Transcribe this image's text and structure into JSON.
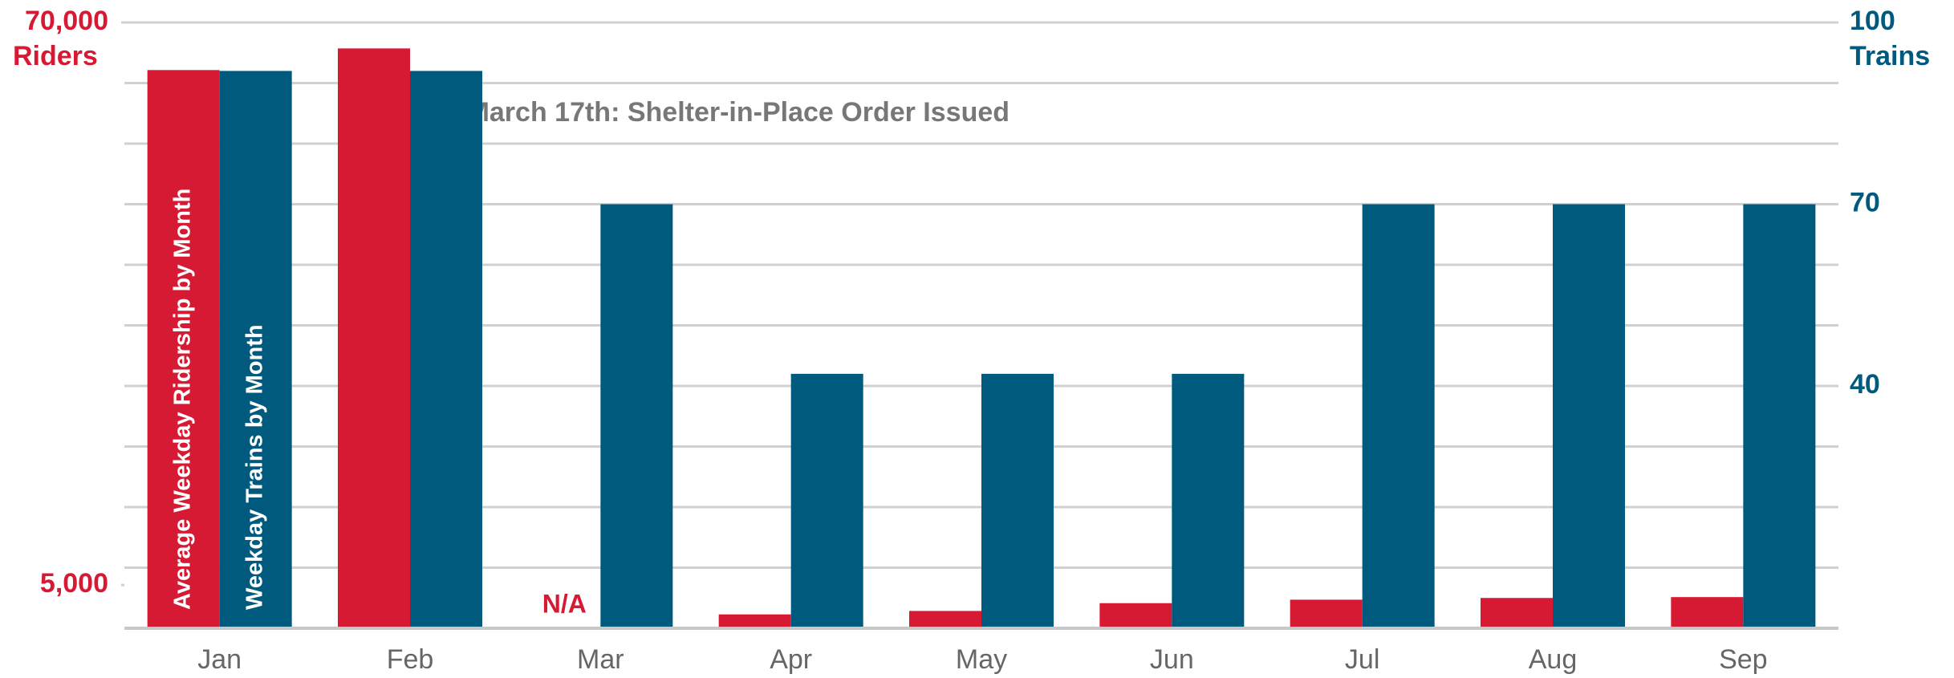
{
  "chart_data": {
    "type": "bar",
    "categories": [
      "Jan",
      "Feb",
      "Mar",
      "Apr",
      "May",
      "Jun",
      "Jul",
      "Aug",
      "Sep"
    ],
    "series": [
      {
        "name": "Average Weekday Ridership by Month",
        "color": "#d71a33",
        "values": [
          64500,
          67000,
          null,
          1600,
          2000,
          2900,
          3300,
          3500,
          3600
        ],
        "value_labels": [
          null,
          null,
          "N/A",
          null,
          null,
          null,
          null,
          null,
          null
        ]
      },
      {
        "name": "Weekday Trains by Month",
        "color": "#005a7e",
        "axis": "y2",
        "values": [
          92,
          92,
          70,
          42,
          42,
          42,
          70,
          70,
          70
        ]
      }
    ],
    "ylabel": "Riders",
    "y2label": "Trains",
    "ylim": [
      0,
      70000
    ],
    "yticks": [
      {
        "value": 5000,
        "label": "5,000"
      },
      {
        "value": 70000,
        "label": "70,000"
      }
    ],
    "y2lim": [
      0,
      100
    ],
    "y2ticks": [
      40,
      70,
      100
    ],
    "annotation": "March 17th: Shelter-in-Place Order Issued",
    "grid": true
  }
}
